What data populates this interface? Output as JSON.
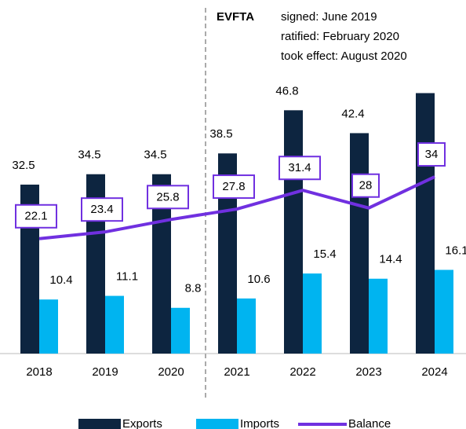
{
  "chart_data": {
    "type": "bar-line",
    "categories": [
      "2018",
      "2019",
      "2020",
      "2021",
      "2022",
      "2023",
      "2024"
    ],
    "series": [
      {
        "name": "Exports",
        "type": "bar",
        "color": "#0d2540",
        "values": [
          32.5,
          34.5,
          34.5,
          38.5,
          46.8,
          42.4,
          50.1
        ],
        "value_labels": [
          "32.5",
          "34.5",
          "34.5",
          "38.5",
          "46.8",
          "42.4",
          null
        ]
      },
      {
        "name": "Imports",
        "type": "bar",
        "color": "#00b4f0",
        "values": [
          10.4,
          11.1,
          8.8,
          10.6,
          15.4,
          14.4,
          16.1
        ]
      },
      {
        "name": "Balance",
        "type": "line",
        "color": "#7030e0",
        "values": [
          22.1,
          23.4,
          25.8,
          27.8,
          31.4,
          28,
          34
        ]
      }
    ],
    "ylim": [
      0,
      60
    ],
    "annotation": {
      "title": "EVFTA",
      "lines": [
        "signed: June 2019",
        "ratified: February 2020",
        "took effect: August 2020"
      ]
    }
  }
}
